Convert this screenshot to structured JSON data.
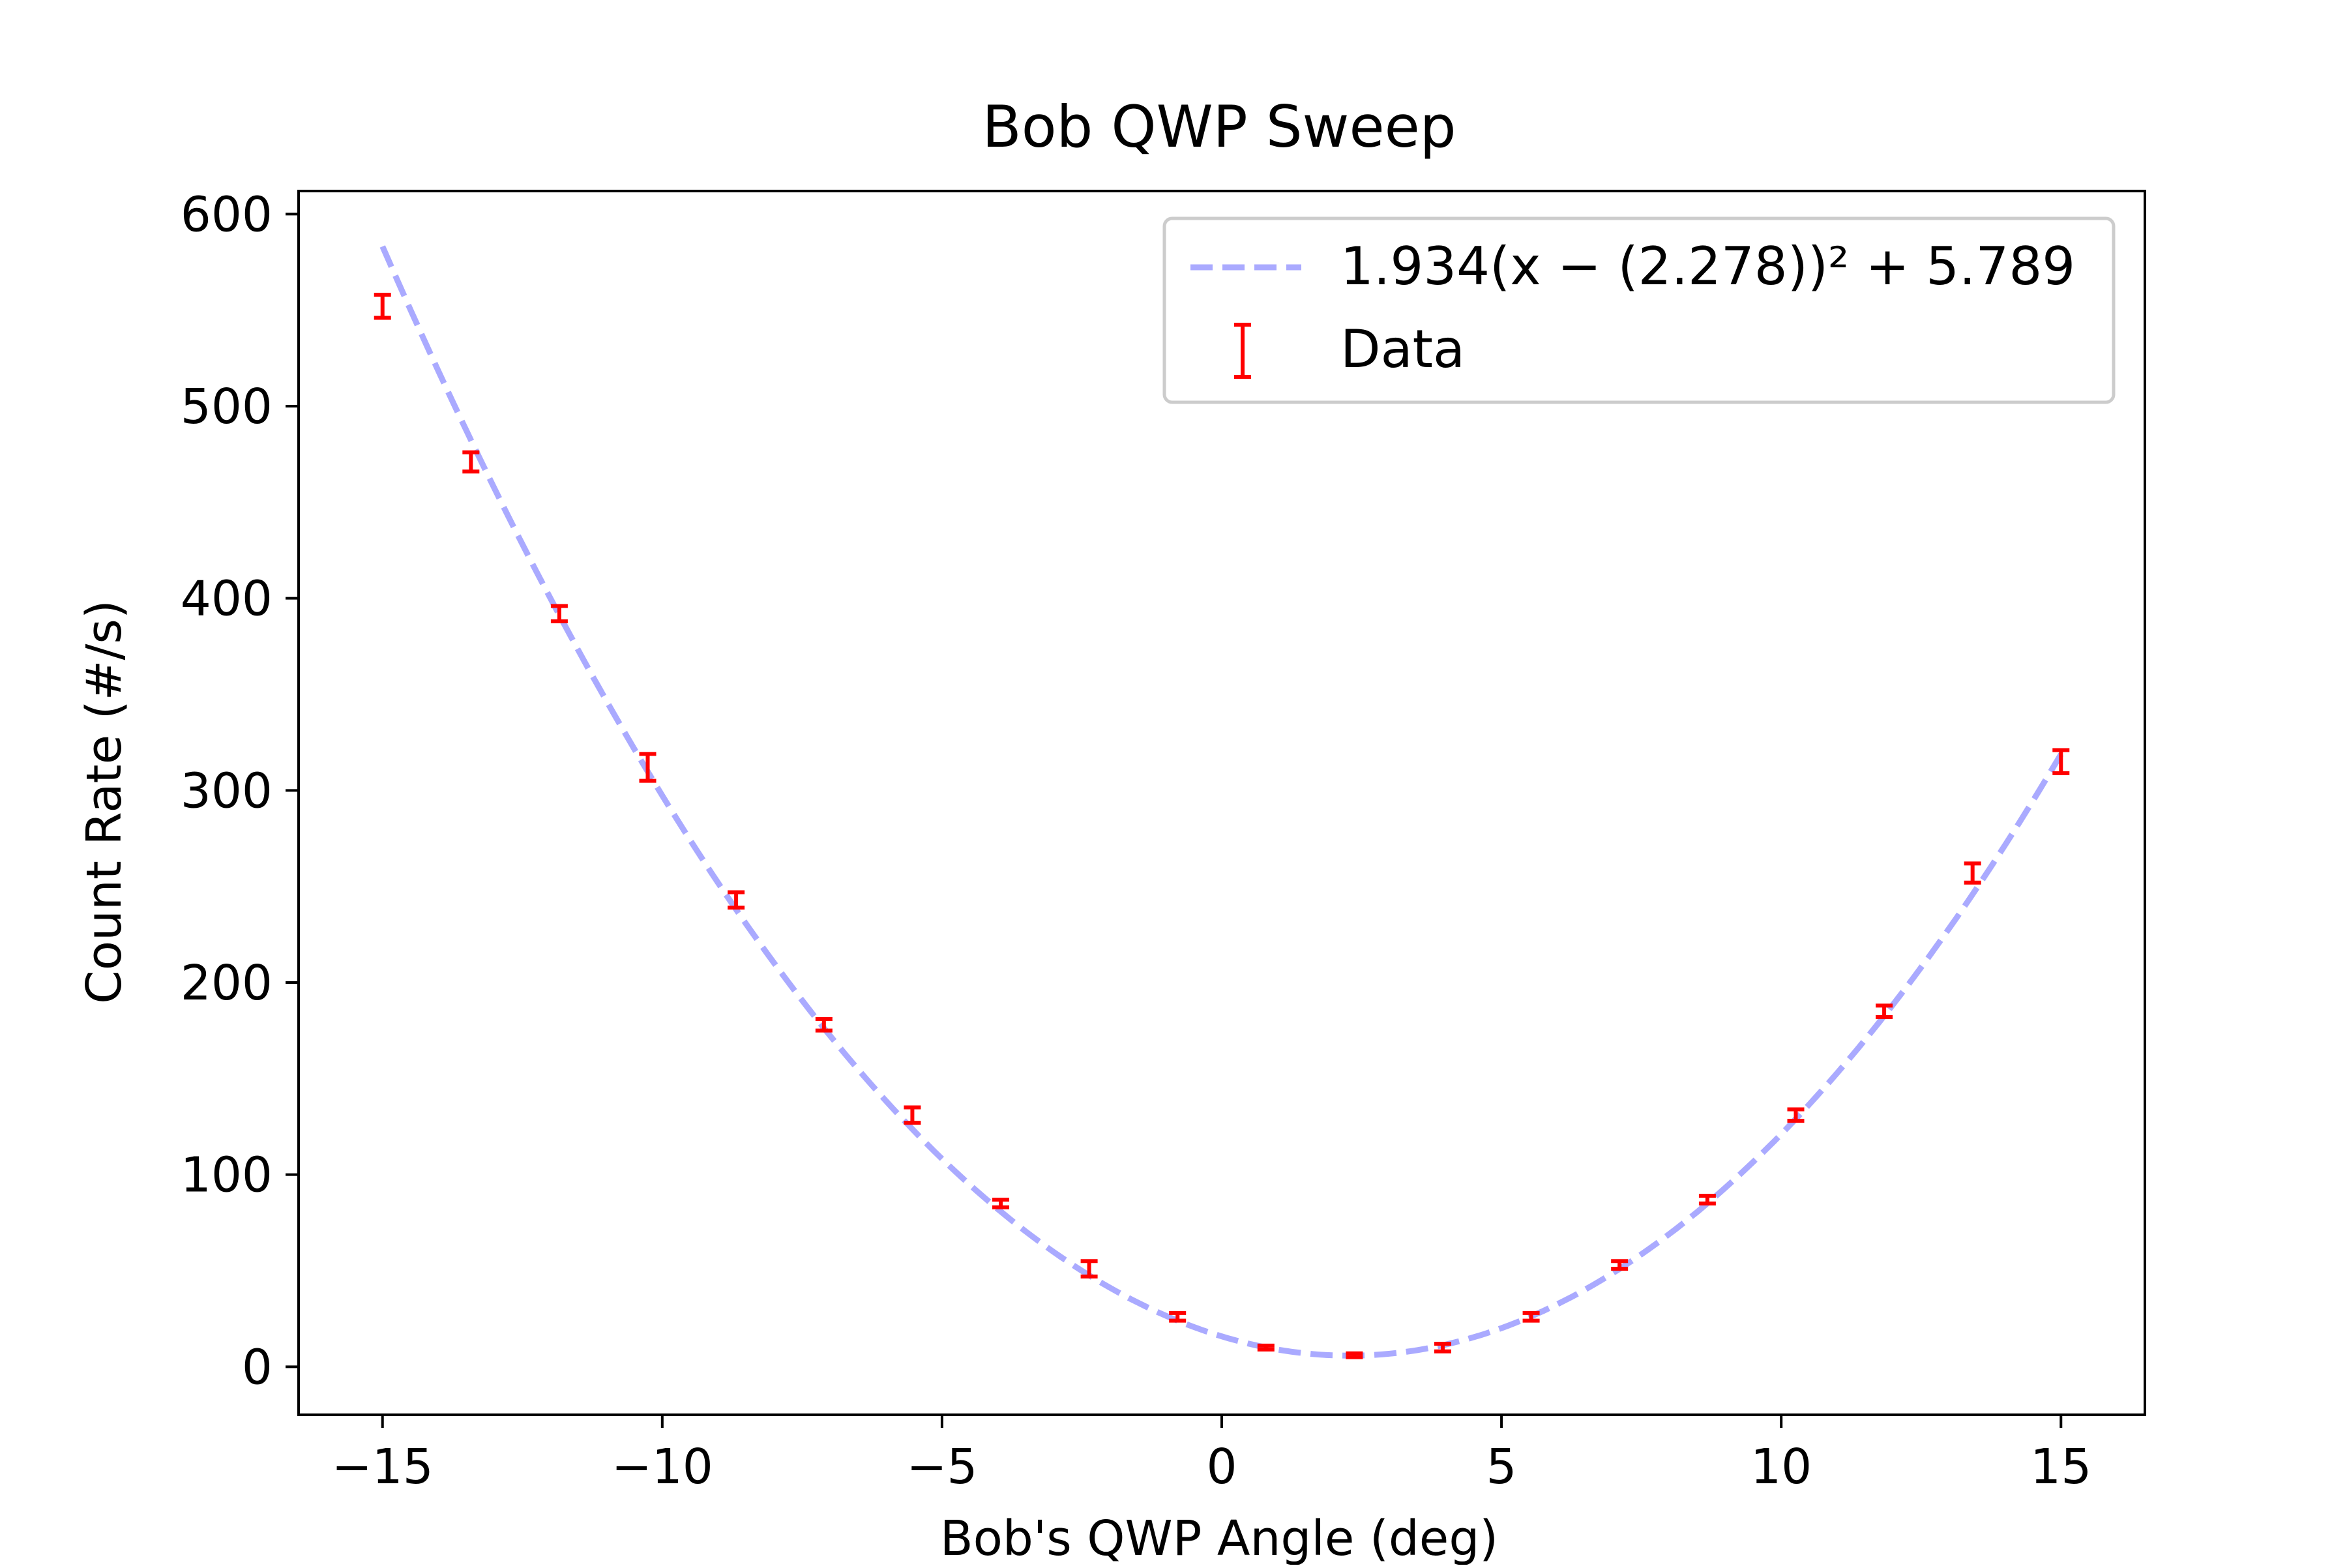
{
  "chart_data": {
    "type": "scatter",
    "title": "Bob QWP Sweep",
    "xlabel": "Bob's QWP Angle (deg)",
    "ylabel": "Count Rate (#/s)",
    "xlim": [
      -16.5,
      16.5
    ],
    "ylim": [
      -25,
      612
    ],
    "x_ticks": [
      -15,
      -10,
      -5,
      0,
      5,
      10,
      15
    ],
    "x_tick_labels": [
      "−15",
      "−10",
      "−5",
      "0",
      "5",
      "10",
      "15"
    ],
    "y_ticks": [
      0,
      100,
      200,
      300,
      400,
      500,
      600
    ],
    "y_tick_labels": [
      "0",
      "100",
      "200",
      "300",
      "400",
      "500",
      "600"
    ],
    "grid": false,
    "legend_position": "top-right",
    "fit": {
      "label": "1.934(x − (2.278))² + 5.789",
      "a": 1.934,
      "h": 2.278,
      "k": 5.789,
      "color": "#aaaaff",
      "style": "dashed"
    },
    "series": [
      {
        "name": "Data",
        "color": "#ff0000",
        "x": [
          -15.0,
          -13.42,
          -11.84,
          -10.26,
          -8.68,
          -7.11,
          -5.53,
          -3.95,
          -2.37,
          -0.79,
          0.79,
          2.37,
          3.95,
          5.53,
          7.11,
          8.68,
          10.26,
          11.84,
          13.42,
          15.0
        ],
        "y": [
          552,
          471,
          392,
          312,
          243,
          178,
          131,
          85,
          51,
          26,
          10,
          6,
          10,
          26,
          53,
          87,
          131,
          185,
          257,
          315
        ],
        "error": [
          6,
          5,
          4,
          7,
          4,
          3,
          4,
          2,
          4,
          2,
          1,
          1,
          2,
          2,
          2,
          2,
          3,
          3,
          5,
          6
        ]
      }
    ]
  }
}
